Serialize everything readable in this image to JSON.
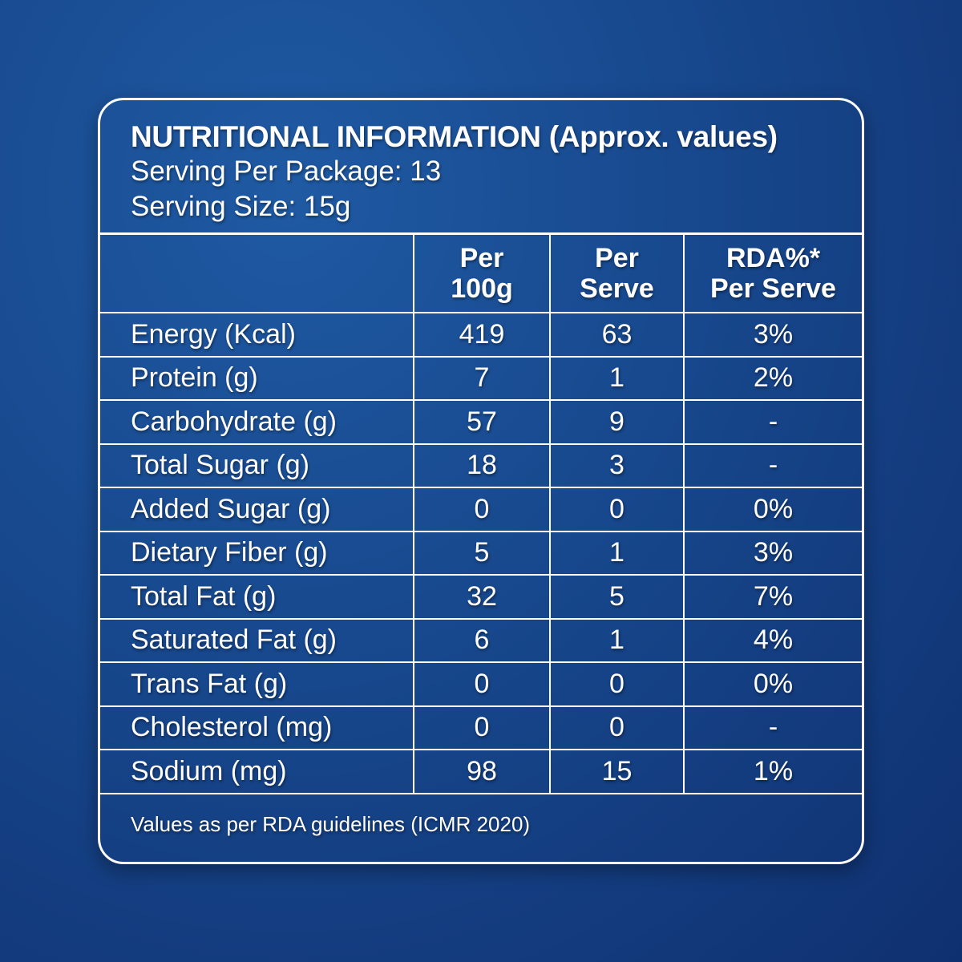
{
  "title": "NUTRITIONAL INFORMATION (Approx. values)",
  "serving_per_package": "Serving Per Package: 13",
  "serving_size": "Serving Size: 15g",
  "columns": [
    {
      "l1": "Per",
      "l2": "100g"
    },
    {
      "l1": "Per",
      "l2": "Serve"
    },
    {
      "l1": "RDA%*",
      "l2": "Per Serve"
    }
  ],
  "rows": [
    [
      "Energy (Kcal)",
      "419",
      "63",
      "3%"
    ],
    [
      "Protein (g)",
      "7",
      "1",
      "2%"
    ],
    [
      "Carbohydrate (g)",
      "57",
      "9",
      "-"
    ],
    [
      "Total Sugar (g)",
      "18",
      "3",
      "-"
    ],
    [
      "Added Sugar (g)",
      "0",
      "0",
      "0%"
    ],
    [
      "Dietary Fiber (g)",
      "5",
      "1",
      "3%"
    ],
    [
      "Total Fat (g)",
      "32",
      "5",
      "7%"
    ],
    [
      "Saturated Fat (g)",
      "6",
      "1",
      "4%"
    ],
    [
      "Trans Fat (g)",
      "0",
      "0",
      "0%"
    ],
    [
      "Cholesterol (mg)",
      "0",
      "0",
      "-"
    ],
    [
      "Sodium (mg)",
      "98",
      "15",
      "1%"
    ]
  ],
  "footnote": "Values as per RDA guidelines (ICMR 2020)"
}
